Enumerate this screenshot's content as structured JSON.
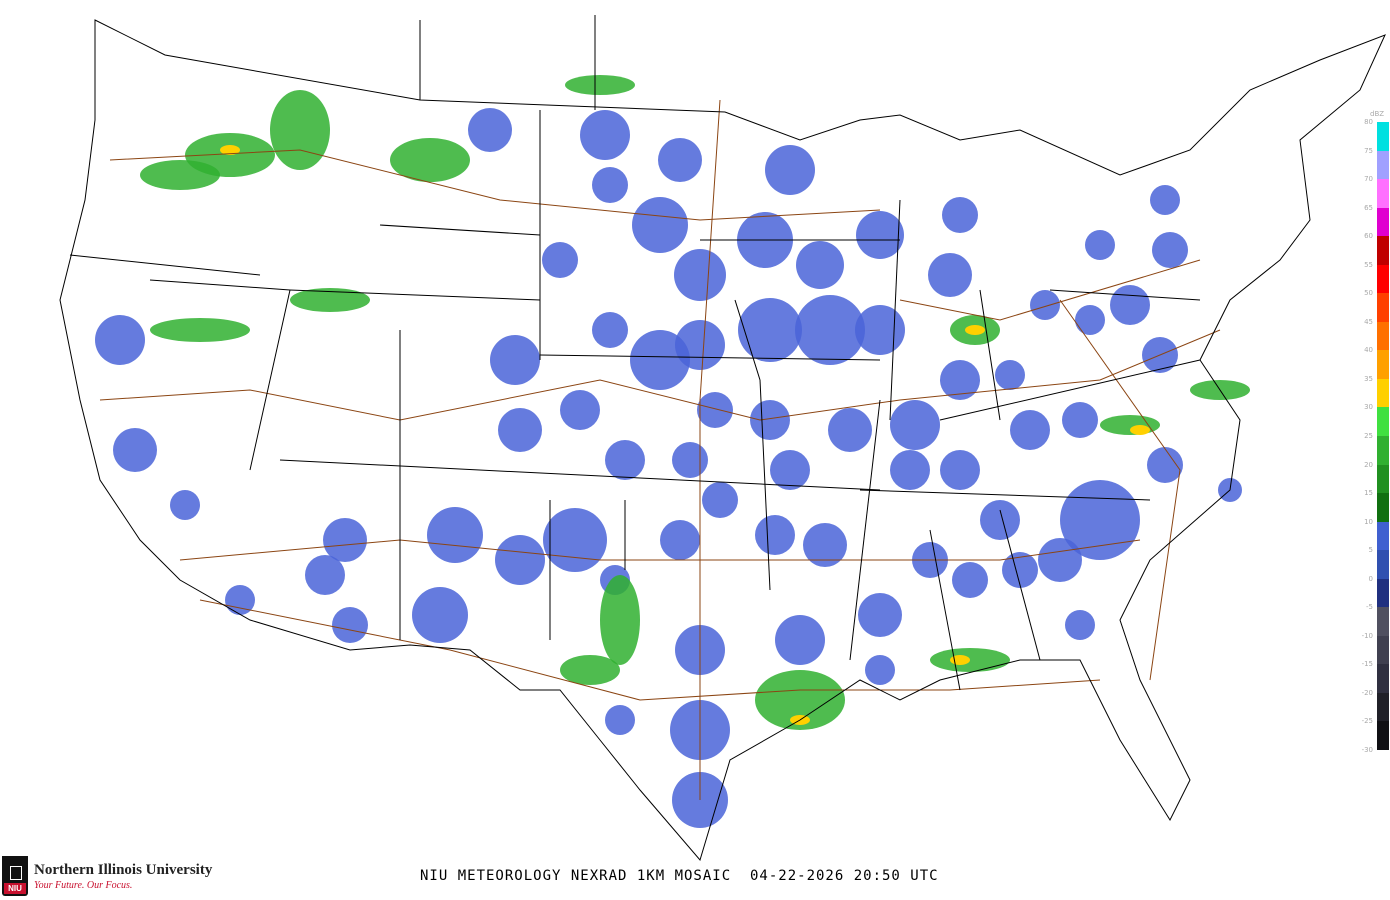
{
  "caption": "NIU METEOROLOGY NEXRAD 1KM MOSAIC  04-22-2026 20:50 UTC",
  "logo": {
    "name": "Northern Illinois University",
    "tagline": "Your Future. Our Focus.",
    "badge": "NIU"
  },
  "colorbar": {
    "unit": "dBZ",
    "labels": [
      "80",
      "75",
      "70",
      "65",
      "60",
      "55",
      "50",
      "45",
      "40",
      "35",
      "30",
      "25",
      "20",
      "15",
      "10",
      "5",
      "0",
      "-5",
      "-10",
      "-15",
      "-20",
      "-25",
      "-30"
    ],
    "colors": [
      "#00e0e0",
      "#a0a0ff",
      "#ff70ff",
      "#e000d0",
      "#c00000",
      "#ff0000",
      "#ff4000",
      "#ff7000",
      "#ffa000",
      "#ffd000",
      "#40e040",
      "#30b030",
      "#209020",
      "#107010",
      "#4060d0",
      "#3050b0",
      "#203080",
      "#505060",
      "#404050",
      "#303040",
      "#202028",
      "#101014"
    ]
  },
  "colors": {
    "background": "#ffffff",
    "borders": "#000000",
    "highways": "#8b4513",
    "light_echo": "#4a64d8"
  }
}
